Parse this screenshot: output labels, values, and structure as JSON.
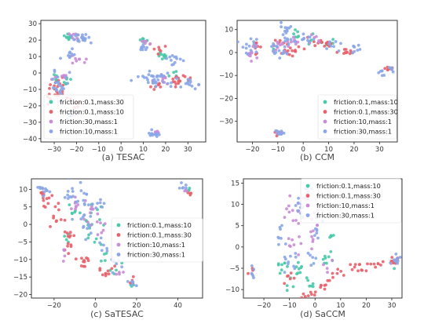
{
  "palette": {
    "teal": "#48c9a9",
    "red": "#e8606a",
    "violet": "#c98cd6",
    "blue": "#8aa6e8"
  },
  "chart_data": [
    {
      "type": "scatter",
      "caption": "(a) TESAC",
      "xlim": [
        -36,
        38
      ],
      "ylim": [
        -42,
        32
      ],
      "xticks": [
        -30,
        -20,
        -10,
        0,
        10,
        20,
        30
      ],
      "yticks": [
        -40,
        -30,
        -20,
        -10,
        0,
        10,
        20,
        30
      ],
      "legend_position": "lower-left",
      "series": [
        {
          "name": "friction:0.1,mass:30",
          "color": "teal",
          "clusters": [
            [
              -23,
              22,
              2,
              2,
              10
            ],
            [
              -30,
              -3,
              2,
              3,
              6
            ],
            [
              -24,
              -6,
              2,
              2,
              6
            ],
            [
              19,
              11,
              2,
              2,
              10
            ],
            [
              11,
              20,
              2,
              2,
              5
            ],
            [
              23,
              0,
              2,
              2,
              4
            ]
          ]
        },
        {
          "name": "friction:0.1,mass:10",
          "color": "red",
          "clusters": [
            [
              -28,
              -10,
              4,
              6,
              20
            ],
            [
              -21,
              -18,
              3,
              3,
              6
            ],
            [
              26,
              -4,
              4,
              3,
              16
            ],
            [
              15,
              -7,
              3,
              3,
              8
            ],
            [
              18,
              15,
              3,
              3,
              6
            ],
            [
              -32,
              -15,
              1,
              3,
              4
            ]
          ]
        },
        {
          "name": "friction:30,mass:1",
          "color": "violet",
          "clusters": [
            [
              -21,
              22,
              2,
              2,
              8
            ],
            [
              -19,
              8,
              3,
              3,
              8
            ],
            [
              -27,
              -2,
              3,
              3,
              8
            ],
            [
              18,
              -4,
              3,
              3,
              10
            ],
            [
              16,
              -36,
              1,
              1,
              6
            ],
            [
              11,
              18,
              3,
              2,
              6
            ]
          ]
        },
        {
          "name": "friction:10,mass:1",
          "color": "blue",
          "clusters": [
            [
              -17,
              21,
              4,
              3,
              22
            ],
            [
              -23,
              11,
              2,
              3,
              10
            ],
            [
              -28,
              -8,
              3,
              7,
              24
            ],
            [
              -22,
              -26,
              2,
              3,
              8
            ],
            [
              15,
              -4,
              6,
              4,
              34
            ],
            [
              24,
              8,
              4,
              3,
              12
            ],
            [
              15,
              -37,
              2,
              1.2,
              12
            ],
            [
              10,
              15,
              2,
              3,
              8
            ],
            [
              31,
              -7,
              4,
              2,
              12
            ]
          ]
        }
      ]
    },
    {
      "type": "scatter",
      "caption": "(b) CCM",
      "xlim": [
        -26,
        37
      ],
      "ylim": [
        -39,
        14
      ],
      "xticks": [
        -20,
        -10,
        0,
        10,
        20,
        30
      ],
      "yticks": [
        -30,
        -20,
        -10,
        0,
        10
      ],
      "legend_position": "lower-right",
      "series": [
        {
          "name": "friction:0.1,mass:10",
          "color": "teal",
          "clusters": [
            [
              -2,
              8,
              2,
              1.5,
              6
            ],
            [
              3,
              6,
              2,
              2,
              4
            ],
            [
              10,
              4,
              3,
              2,
              4
            ],
            [
              -12,
              3,
              2,
              2,
              3
            ]
          ]
        },
        {
          "name": "friction:0.1,mass:30",
          "color": "red",
          "clusters": [
            [
              -19,
              2,
              2,
              2,
              8
            ],
            [
              -5,
              2,
              5,
              3,
              20
            ],
            [
              8,
              4,
              4,
              2,
              14
            ],
            [
              17,
              0,
              3,
              2,
              10
            ],
            [
              34,
              -7,
              1.5,
              1,
              8
            ],
            [
              -10,
              -35,
              1.5,
              0.7,
              6
            ]
          ]
        },
        {
          "name": "friction:10,mass:1",
          "color": "violet",
          "clusters": [
            [
              -20,
              0,
              3,
              3,
              10
            ],
            [
              -10,
              3,
              3,
              3,
              10
            ],
            [
              -5,
              6,
              3,
              3,
              8
            ],
            [
              5,
              6,
              3,
              2,
              6
            ],
            [
              -9,
              -35,
              1.5,
              0.7,
              4
            ]
          ]
        },
        {
          "name": "friction:30,mass:1",
          "color": "blue",
          "clusters": [
            [
              -21,
              3,
              3,
              3,
              14
            ],
            [
              -10,
              2,
              4,
              3,
              14
            ],
            [
              -6,
              10,
              2,
              2,
              10
            ],
            [
              -6,
              6,
              2,
              3,
              8
            ],
            [
              2,
              6,
              3,
              2,
              10
            ],
            [
              12,
              3,
              3,
              2,
              8
            ],
            [
              20,
              1,
              3,
              2,
              8
            ],
            [
              31,
              -9,
              1,
              1.2,
              6
            ],
            [
              35,
              -7,
              1,
              1,
              6
            ],
            [
              -9,
              -35,
              1.8,
              0.7,
              10
            ]
          ]
        }
      ]
    },
    {
      "type": "scatter",
      "caption": "(c) SaTESAC",
      "xlim": [
        -31,
        52
      ],
      "ylim": [
        -21,
        13
      ],
      "xticks": [
        -20,
        0,
        20,
        40
      ],
      "yticks": [
        -20,
        -15,
        -10,
        -5,
        0,
        5,
        10
      ],
      "legend_position": "center-right",
      "series": [
        {
          "name": "friction:0.1,mass:10",
          "color": "teal",
          "clusters": [
            [
              -10,
              4,
              3,
              2,
              6
            ],
            [
              -4,
              -1,
              3,
              3,
              8
            ],
            [
              2,
              -3,
              3,
              3,
              6
            ],
            [
              -14,
              -5,
              2,
              2,
              4
            ],
            [
              10,
              -13,
              2,
              2,
              4
            ],
            [
              4,
              -9,
              2,
              2,
              4
            ],
            [
              -1,
              6,
              2,
              2,
              4
            ],
            [
              17,
              -17,
              2,
              1,
              3
            ],
            [
              44,
              10,
              2,
              1,
              3
            ]
          ]
        },
        {
          "name": "friction:0.1,mass:30",
          "color": "red",
          "clusters": [
            [
              -24,
              7,
              3,
              2,
              10
            ],
            [
              -19,
              2,
              3,
              3,
              10
            ],
            [
              -13,
              -5,
              3,
              4,
              14
            ],
            [
              -6,
              -10,
              3,
              2,
              10
            ],
            [
              6,
              -13,
              3,
              2,
              10
            ],
            [
              -26,
              9,
              1,
              1,
              3
            ],
            [
              18,
              -16,
              1,
              1,
              4
            ],
            [
              46,
              9,
              2,
              1,
              4
            ]
          ]
        },
        {
          "name": "friction:10,mass:1",
          "color": "violet",
          "clusters": [
            [
              -9,
              6,
              4,
              3,
              10
            ],
            [
              -3,
              3,
              4,
              4,
              10
            ],
            [
              4,
              -1,
              3,
              3,
              6
            ],
            [
              -15,
              -9,
              2,
              2,
              4
            ],
            [
              11,
              -14,
              2,
              1,
              4
            ],
            [
              44,
              10,
              2,
              1,
              3
            ]
          ]
        },
        {
          "name": "friction:30,mass:1",
          "color": "blue",
          "clusters": [
            [
              -24,
              9,
              2,
              1.5,
              8
            ],
            [
              -12,
              8,
              4,
              3,
              12
            ],
            [
              -5,
              9,
              3,
              3,
              8
            ],
            [
              2,
              6,
              3,
              3,
              8
            ],
            [
              -6,
              0,
              4,
              4,
              12
            ],
            [
              4,
              -6,
              3,
              3,
              6
            ],
            [
              10,
              -12,
              2,
              2,
              6
            ],
            [
              18,
              -17,
              1.5,
              1,
              6
            ],
            [
              44,
              11,
              2,
              1,
              6
            ],
            [
              -27,
              10,
              1,
              0.5,
              3
            ]
          ]
        }
      ]
    },
    {
      "type": "scatter",
      "caption": "(d) SaCCM",
      "xlim": [
        -28,
        34
      ],
      "ylim": [
        -12,
        16
      ],
      "xticks": [
        -20,
        -10,
        0,
        10,
        20,
        30
      ],
      "yticks": [
        -10,
        -5,
        0,
        5,
        10,
        15
      ],
      "legend_position": "top-right",
      "series": [
        {
          "name": "friction:0.1,mass:10",
          "color": "teal",
          "clusters": [
            [
              -13,
              -5,
              2,
              1.5,
              8
            ],
            [
              -7,
              -5,
              2,
              2,
              8
            ],
            [
              -2,
              -8,
              2,
              2,
              6
            ],
            [
              4,
              -3,
              2,
              2,
              6
            ],
            [
              6,
              1,
              2,
              3,
              6
            ],
            [
              -11,
              -9,
              2,
              1.5,
              4
            ],
            [
              30,
              -4,
              1,
              1,
              3
            ]
          ]
        },
        {
          "name": "friction:0.1,mass:30",
          "color": "red",
          "clusters": [
            [
              -11,
              -7,
              2,
              1.5,
              6
            ],
            [
              -3,
              -11,
              3,
              1,
              8
            ],
            [
              3,
              -9,
              3,
              1,
              8
            ],
            [
              9,
              -6,
              2,
              1,
              6
            ],
            [
              16,
              -5,
              3,
              1,
              10
            ],
            [
              24,
              -4,
              3,
              0.7,
              8
            ],
            [
              31,
              -3,
              1.2,
              1,
              10
            ],
            [
              -25,
              -6,
              1,
              1,
              4
            ]
          ]
        },
        {
          "name": "friction:10,mass:1",
          "color": "violet",
          "clusters": [
            [
              -9,
              8,
              3,
              3,
              10
            ],
            [
              -4,
              11,
              2,
              3,
              10
            ],
            [
              0,
              7,
              3,
              3,
              8
            ],
            [
              -8,
              2,
              3,
              3,
              8
            ],
            [
              -1,
              1,
              2,
              3,
              6
            ],
            [
              6,
              -4,
              2,
              2,
              4
            ],
            [
              31,
              -3,
              1,
              1,
              4
            ]
          ]
        },
        {
          "name": "friction:30,mass:1",
          "color": "blue",
          "clusters": [
            [
              -13,
              4,
              3,
              3,
              8
            ],
            [
              -6,
              10,
              2,
              3,
              10
            ],
            [
              -2,
              14,
              2,
              1.5,
              6
            ],
            [
              1,
              4,
              3,
              3,
              8
            ],
            [
              -10,
              -4,
              3,
              3,
              10
            ],
            [
              0,
              -3,
              2,
              2,
              6
            ],
            [
              -25,
              -6,
              1,
              1,
              6
            ],
            [
              32,
              -3,
              1,
              1,
              8
            ]
          ]
        }
      ]
    }
  ]
}
